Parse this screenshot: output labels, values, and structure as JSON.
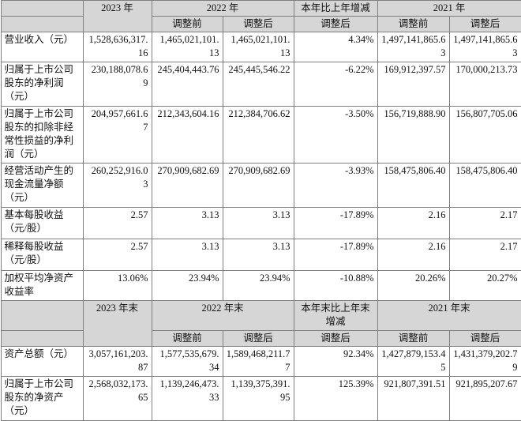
{
  "table": {
    "income_header": {
      "year_2023": "2023 年",
      "year_2022": "2022 年",
      "change": "本年比上年增减",
      "year_2021": "2021 年",
      "before": "调整前",
      "after": "调整后",
      "change_after": "调整后"
    },
    "income_rows": [
      {
        "label": "营业收入（元）",
        "v2023": "1,528,636,317.16",
        "v2022_before": "1,465,021,101.13",
        "v2022_after": "1,465,021,101.13",
        "change": "4.34%",
        "v2021_before": "1,497,141,865.63",
        "v2021_after": "1,497,141,865.63"
      },
      {
        "label": "归属于上市公司股东的净利润（元）",
        "v2023": "230,188,078.69",
        "v2022_before": "245,404,443.76",
        "v2022_after": "245,445,546.22",
        "change": "-6.22%",
        "v2021_before": "169,912,397.57",
        "v2021_after": "170,000,213.73"
      },
      {
        "label": "归属于上市公司股东的扣除非经常性损益的净利润（元）",
        "v2023": "204,957,661.67",
        "v2022_before": "212,343,604.16",
        "v2022_after": "212,384,706.62",
        "change": "-3.50%",
        "v2021_before": "156,719,888.90",
        "v2021_after": "156,807,705.06"
      },
      {
        "label": "经营活动产生的现金流量净额（元）",
        "v2023": "260,252,916.03",
        "v2022_before": "270,909,682.69",
        "v2022_after": "270,909,682.69",
        "change": "-3.93%",
        "v2021_before": "158,475,806.40",
        "v2021_after": "158,475,806.40"
      },
      {
        "label": "基本每股收益（元/股）",
        "v2023": "2.57",
        "v2022_before": "3.13",
        "v2022_after": "3.13",
        "change": "-17.89%",
        "v2021_before": "2.16",
        "v2021_after": "2.17"
      },
      {
        "label": "稀释每股收益（元/股）",
        "v2023": "2.57",
        "v2022_before": "3.13",
        "v2022_after": "3.13",
        "change": "-17.89%",
        "v2021_before": "2.16",
        "v2021_after": "2.17"
      },
      {
        "label": "加权平均净资产收益率",
        "v2023": "13.06%",
        "v2022_before": "23.94%",
        "v2022_after": "23.94%",
        "change": "-10.88%",
        "v2021_before": "20.26%",
        "v2021_after": "20.27%"
      }
    ],
    "balance_header": {
      "year_2023": "2023 年末",
      "year_2022": "2022 年末",
      "change": "本年末比上年末增减",
      "year_2021": "2021 年末",
      "before": "调整前",
      "after": "调整后",
      "change_after": "调整后"
    },
    "balance_rows": [
      {
        "label": "资产总额（元）",
        "v2023": "3,057,161,203.87",
        "v2022_before": "1,577,535,679.34",
        "v2022_after": "1,589,468,211.77",
        "change": "92.34%",
        "v2021_before": "1,427,879,153.45",
        "v2021_after": "1,431,379,202.79"
      },
      {
        "label": "归属于上市公司股东的净资产（元）",
        "v2023": "2,568,032,173.65",
        "v2022_before": "1,139,246,473.33",
        "v2022_after": "1,139,375,391.95",
        "change": "125.39%",
        "v2021_before": "921,807,391.51",
        "v2021_after": "921,895,207.67"
      }
    ]
  }
}
